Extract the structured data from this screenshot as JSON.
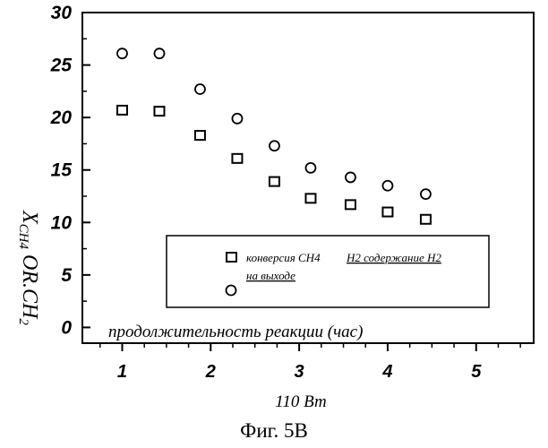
{
  "chart_data": {
    "type": "scatter",
    "xlim": [
      0.55,
      5.65
    ],
    "ylim": [
      -1.5,
      30
    ],
    "xticks": [
      1,
      2,
      3,
      4,
      5
    ],
    "yticks": [
      0,
      5,
      10,
      15,
      20,
      25,
      30
    ],
    "ylabel": "X",
    "ylabel_sub": "CH4",
    "ylabel_rest": " OR.CH",
    "ylabel_rest_sub": "2",
    "xlabel": "110 Вт",
    "inner_label": "продолжительность реакции (час)",
    "caption": "Фиг. 5B",
    "legend": {
      "square_label": "конверсия CH4",
      "circle_label_part1": "H2 содержание H2",
      "circle_label_part2": "на выходе",
      "placement": "lower-right"
    },
    "series": [
      {
        "marker": "square",
        "x": [
          1.0,
          1.42,
          1.88,
          2.3,
          2.72,
          3.13,
          3.58,
          4.0,
          4.43
        ],
        "values": [
          20.7,
          20.6,
          18.3,
          16.1,
          13.9,
          12.3,
          11.7,
          11.0,
          10.3
        ]
      },
      {
        "marker": "circle",
        "x": [
          1.0,
          1.42,
          1.88,
          2.3,
          2.72,
          3.13,
          3.58,
          4.0,
          4.43
        ],
        "values": [
          26.1,
          26.1,
          22.7,
          19.9,
          17.3,
          15.2,
          14.3,
          13.5,
          12.7
        ]
      }
    ]
  }
}
